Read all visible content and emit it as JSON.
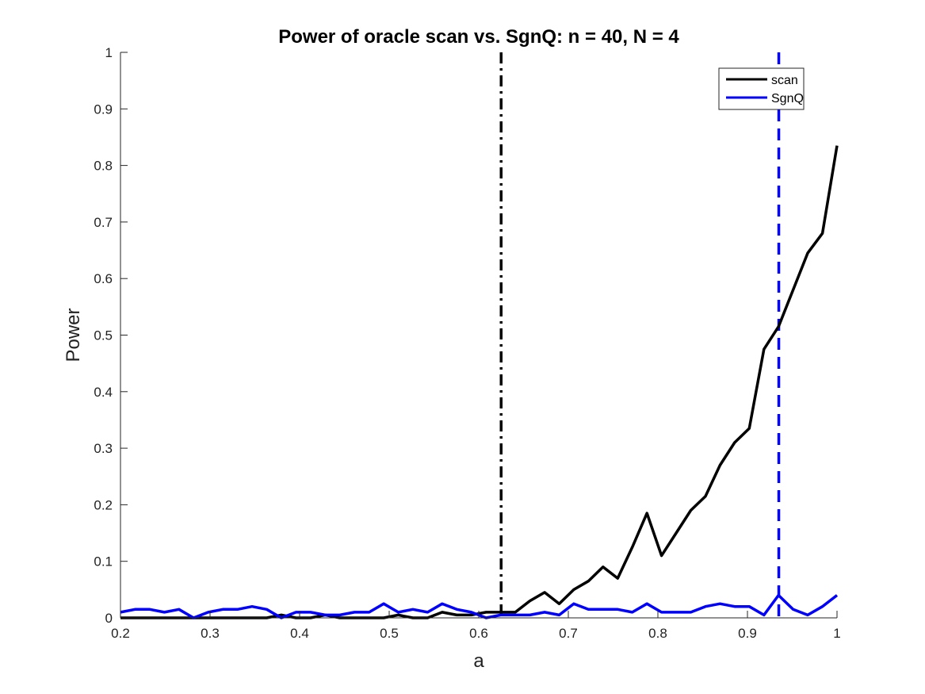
{
  "chart_data": {
    "type": "line",
    "title": "Power of oracle scan vs. SgnQ:  n = 40, N = 4",
    "xlabel": "a",
    "ylabel": "Power",
    "xlim": [
      0.2,
      1
    ],
    "ylim": [
      0,
      1
    ],
    "xticks": [
      "0.2",
      "0.3",
      "0.4",
      "0.5",
      "0.6",
      "0.7",
      "0.8",
      "0.9",
      "1"
    ],
    "yticks": [
      "0",
      "0.1",
      "0.2",
      "0.3",
      "0.4",
      "0.5",
      "0.6",
      "0.7",
      "0.8",
      "0.9",
      "1"
    ],
    "grid": false,
    "legend_position": "top-right",
    "x": [
      0.2,
      0.2163,
      0.2327,
      0.249,
      0.2653,
      0.2816,
      0.298,
      0.3143,
      0.3306,
      0.3469,
      0.3633,
      0.3796,
      0.3959,
      0.4122,
      0.4286,
      0.4449,
      0.4612,
      0.4776,
      0.4939,
      0.5102,
      0.5265,
      0.5429,
      0.5592,
      0.5755,
      0.5918,
      0.6082,
      0.6245,
      0.6408,
      0.6571,
      0.6735,
      0.6898,
      0.7061,
      0.7224,
      0.7388,
      0.7551,
      0.7714,
      0.7878,
      0.8041,
      0.8204,
      0.8367,
      0.8531,
      0.8694,
      0.8857,
      0.902,
      0.9184,
      0.9347,
      0.951,
      0.9673,
      0.9837,
      1.0
    ],
    "series": [
      {
        "name": "scan",
        "color": "#000000",
        "values": [
          0,
          0,
          0,
          0,
          0,
          0,
          0,
          0,
          0,
          0,
          0,
          0.005,
          0,
          0,
          0.005,
          0,
          0,
          0,
          0,
          0.005,
          0,
          0,
          0.01,
          0.005,
          0.005,
          0.01,
          0.01,
          0.01,
          0.03,
          0.045,
          0.025,
          0.05,
          0.065,
          0.09,
          0.07,
          0.125,
          0.185,
          0.11,
          0.15,
          0.19,
          0.215,
          0.27,
          0.31,
          0.335,
          0.475,
          0.515,
          0.58,
          0.645,
          0.68,
          0.835
        ]
      },
      {
        "name": "SgnQ",
        "color": "#0000ff",
        "values": [
          0.01,
          0.015,
          0.015,
          0.01,
          0.015,
          0,
          0.01,
          0.015,
          0.015,
          0.02,
          0.015,
          0,
          0.01,
          0.01,
          0.005,
          0.005,
          0.01,
          0.01,
          0.025,
          0.01,
          0.015,
          0.01,
          0.025,
          0.015,
          0.01,
          0,
          0.005,
          0.005,
          0.005,
          0.01,
          0.005,
          0.025,
          0.015,
          0.015,
          0.015,
          0.01,
          0.025,
          0.01,
          0.01,
          0.01,
          0.02,
          0.025,
          0.02,
          0.02,
          0.005,
          0.04,
          0.015,
          0.005,
          0.02,
          0.04
        ]
      }
    ],
    "vertical_lines": [
      {
        "x": 0.625,
        "style": "dash-dot",
        "color": "#000000"
      },
      {
        "x": 0.935,
        "style": "dashed",
        "color": "#0000ff"
      }
    ]
  }
}
